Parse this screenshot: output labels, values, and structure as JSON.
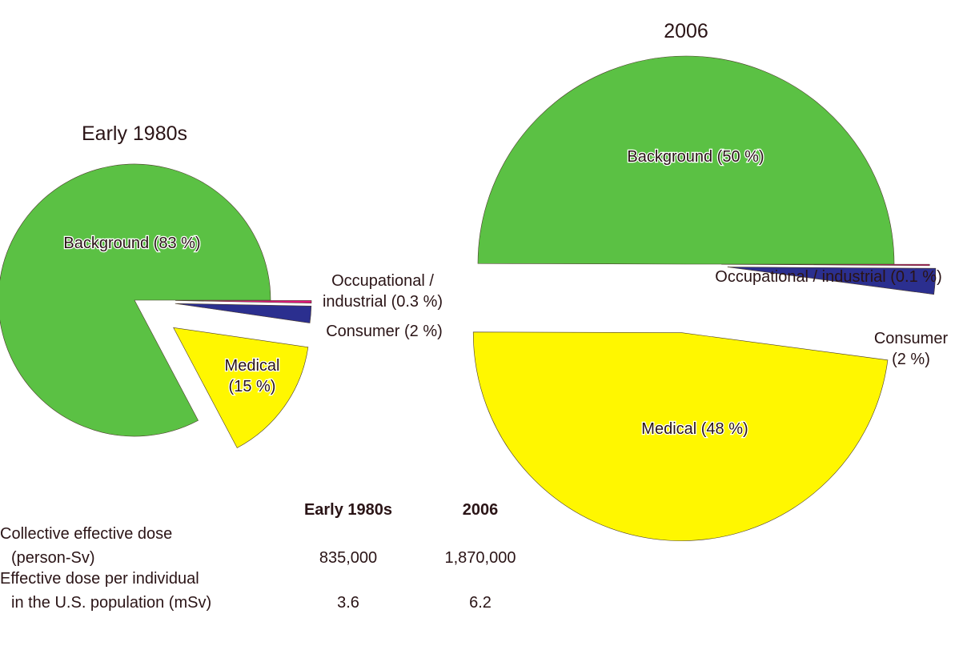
{
  "chart_data": [
    {
      "type": "pie",
      "title": "Early 1980s",
      "categories": [
        "Occupational / industrial",
        "Consumer",
        "Medical",
        "Background"
      ],
      "values": [
        0.3,
        2,
        15,
        83
      ],
      "value_labels": [
        "Occupational /\nindustrial (0.3 %)",
        "Consumer (2 %)",
        "Medical\n(15 %)",
        "Background (83 %)"
      ],
      "colors": [
        "#e0197d",
        "#2b2f8f",
        "#fff700",
        "#5bc144"
      ]
    },
    {
      "type": "pie",
      "title": "2006",
      "categories": [
        "Occupational / industrial",
        "Consumer",
        "Medical",
        "Background"
      ],
      "values": [
        0.1,
        2,
        48,
        50
      ],
      "value_labels": [
        "Occupational / industrial (0.1 %)",
        "Consumer\n(2 %)",
        "Medical (48 %)",
        "Background (50 %)"
      ],
      "colors": [
        "#e0197d",
        "#2b2f8f",
        "#fff700",
        "#5bc144"
      ]
    }
  ],
  "table": {
    "columns": [
      "Early 1980s",
      "2006"
    ],
    "rows": [
      {
        "label": [
          "Collective effective dose",
          "(person-Sv)"
        ],
        "values": [
          "835,000",
          "1,870,000"
        ]
      },
      {
        "label": [
          "Effective dose per individual",
          "in the U.S. population (mSv)"
        ],
        "values": [
          "3.6",
          "6.2"
        ]
      }
    ]
  }
}
